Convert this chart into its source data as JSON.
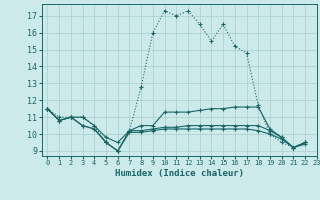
{
  "xlabel": "Humidex (Indice chaleur)",
  "background_color": "#cceaea",
  "grid_color": "#aacccc",
  "line_color": "#1a6666",
  "xlim": [
    -0.5,
    23
  ],
  "ylim": [
    8.7,
    17.7
  ],
  "yticks": [
    9,
    10,
    11,
    12,
    13,
    14,
    15,
    16,
    17
  ],
  "xticks": [
    0,
    1,
    2,
    3,
    4,
    5,
    6,
    7,
    8,
    9,
    10,
    11,
    12,
    13,
    14,
    15,
    16,
    17,
    18,
    19,
    20,
    21,
    22,
    23
  ],
  "xdata": [
    0,
    1,
    2,
    3,
    4,
    5,
    6,
    7,
    8,
    9,
    10,
    11,
    12,
    13,
    14,
    15,
    16,
    17,
    18,
    19,
    20,
    21,
    22
  ],
  "series": [
    {
      "y": [
        11.5,
        11.0,
        11.0,
        11.0,
        10.5,
        9.5,
        9.0,
        10.2,
        12.8,
        16.0,
        17.3,
        17.0,
        17.3,
        16.5,
        15.5,
        16.5,
        15.2,
        14.8,
        11.7,
        10.0,
        9.5,
        9.2,
        9.5
      ],
      "style": "dotted"
    },
    {
      "y": [
        11.5,
        10.8,
        11.0,
        11.0,
        10.5,
        9.8,
        9.5,
        10.2,
        10.5,
        10.5,
        11.3,
        11.3,
        11.3,
        11.4,
        11.5,
        11.5,
        11.6,
        11.6,
        11.6,
        10.3,
        9.8,
        9.2,
        9.5
      ],
      "style": "solid"
    },
    {
      "y": [
        11.5,
        10.8,
        11.0,
        10.5,
        10.3,
        9.5,
        9.0,
        10.2,
        10.2,
        10.3,
        10.4,
        10.4,
        10.5,
        10.5,
        10.5,
        10.5,
        10.5,
        10.5,
        10.5,
        10.2,
        9.8,
        9.2,
        9.5
      ],
      "style": "solid"
    },
    {
      "y": [
        11.5,
        10.8,
        11.0,
        10.5,
        10.3,
        9.5,
        9.0,
        10.1,
        10.1,
        10.2,
        10.3,
        10.3,
        10.3,
        10.3,
        10.3,
        10.3,
        10.3,
        10.3,
        10.2,
        10.0,
        9.7,
        9.2,
        9.4
      ],
      "style": "solid"
    }
  ]
}
